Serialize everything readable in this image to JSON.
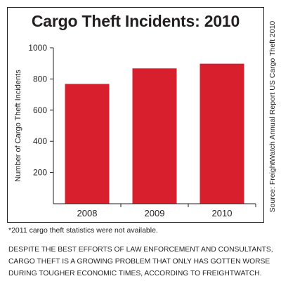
{
  "chart_data": {
    "type": "bar",
    "title": "Cargo Theft Incidents: 2010",
    "categories": [
      "2008",
      "2009",
      "2010"
    ],
    "values": [
      768,
      868,
      898
    ],
    "ylabel": "Number of Cargo Theft Incidents",
    "xlabel": "",
    "ylim": [
      0,
      1000
    ],
    "yticks": [
      200,
      400,
      600,
      800,
      1000
    ],
    "bar_color": "#d71f2e",
    "grid": false
  },
  "source": "Source: FreightWatch Annual Report US Cargo Theft 2010",
  "footnote": "*2011 cargo theft statistics were not available.",
  "caption": "DESPITE THE BEST EFFORTS OF LAW ENFORCEMENT AND CONSULTANTS, CARGO THEFT IS A GROWING PROBLEM THAT ONLY HAS GOTTEN WORSE DURING TOUGHER ECONOMIC TIMES, ACCORDING TO FREIGHTWATCH."
}
